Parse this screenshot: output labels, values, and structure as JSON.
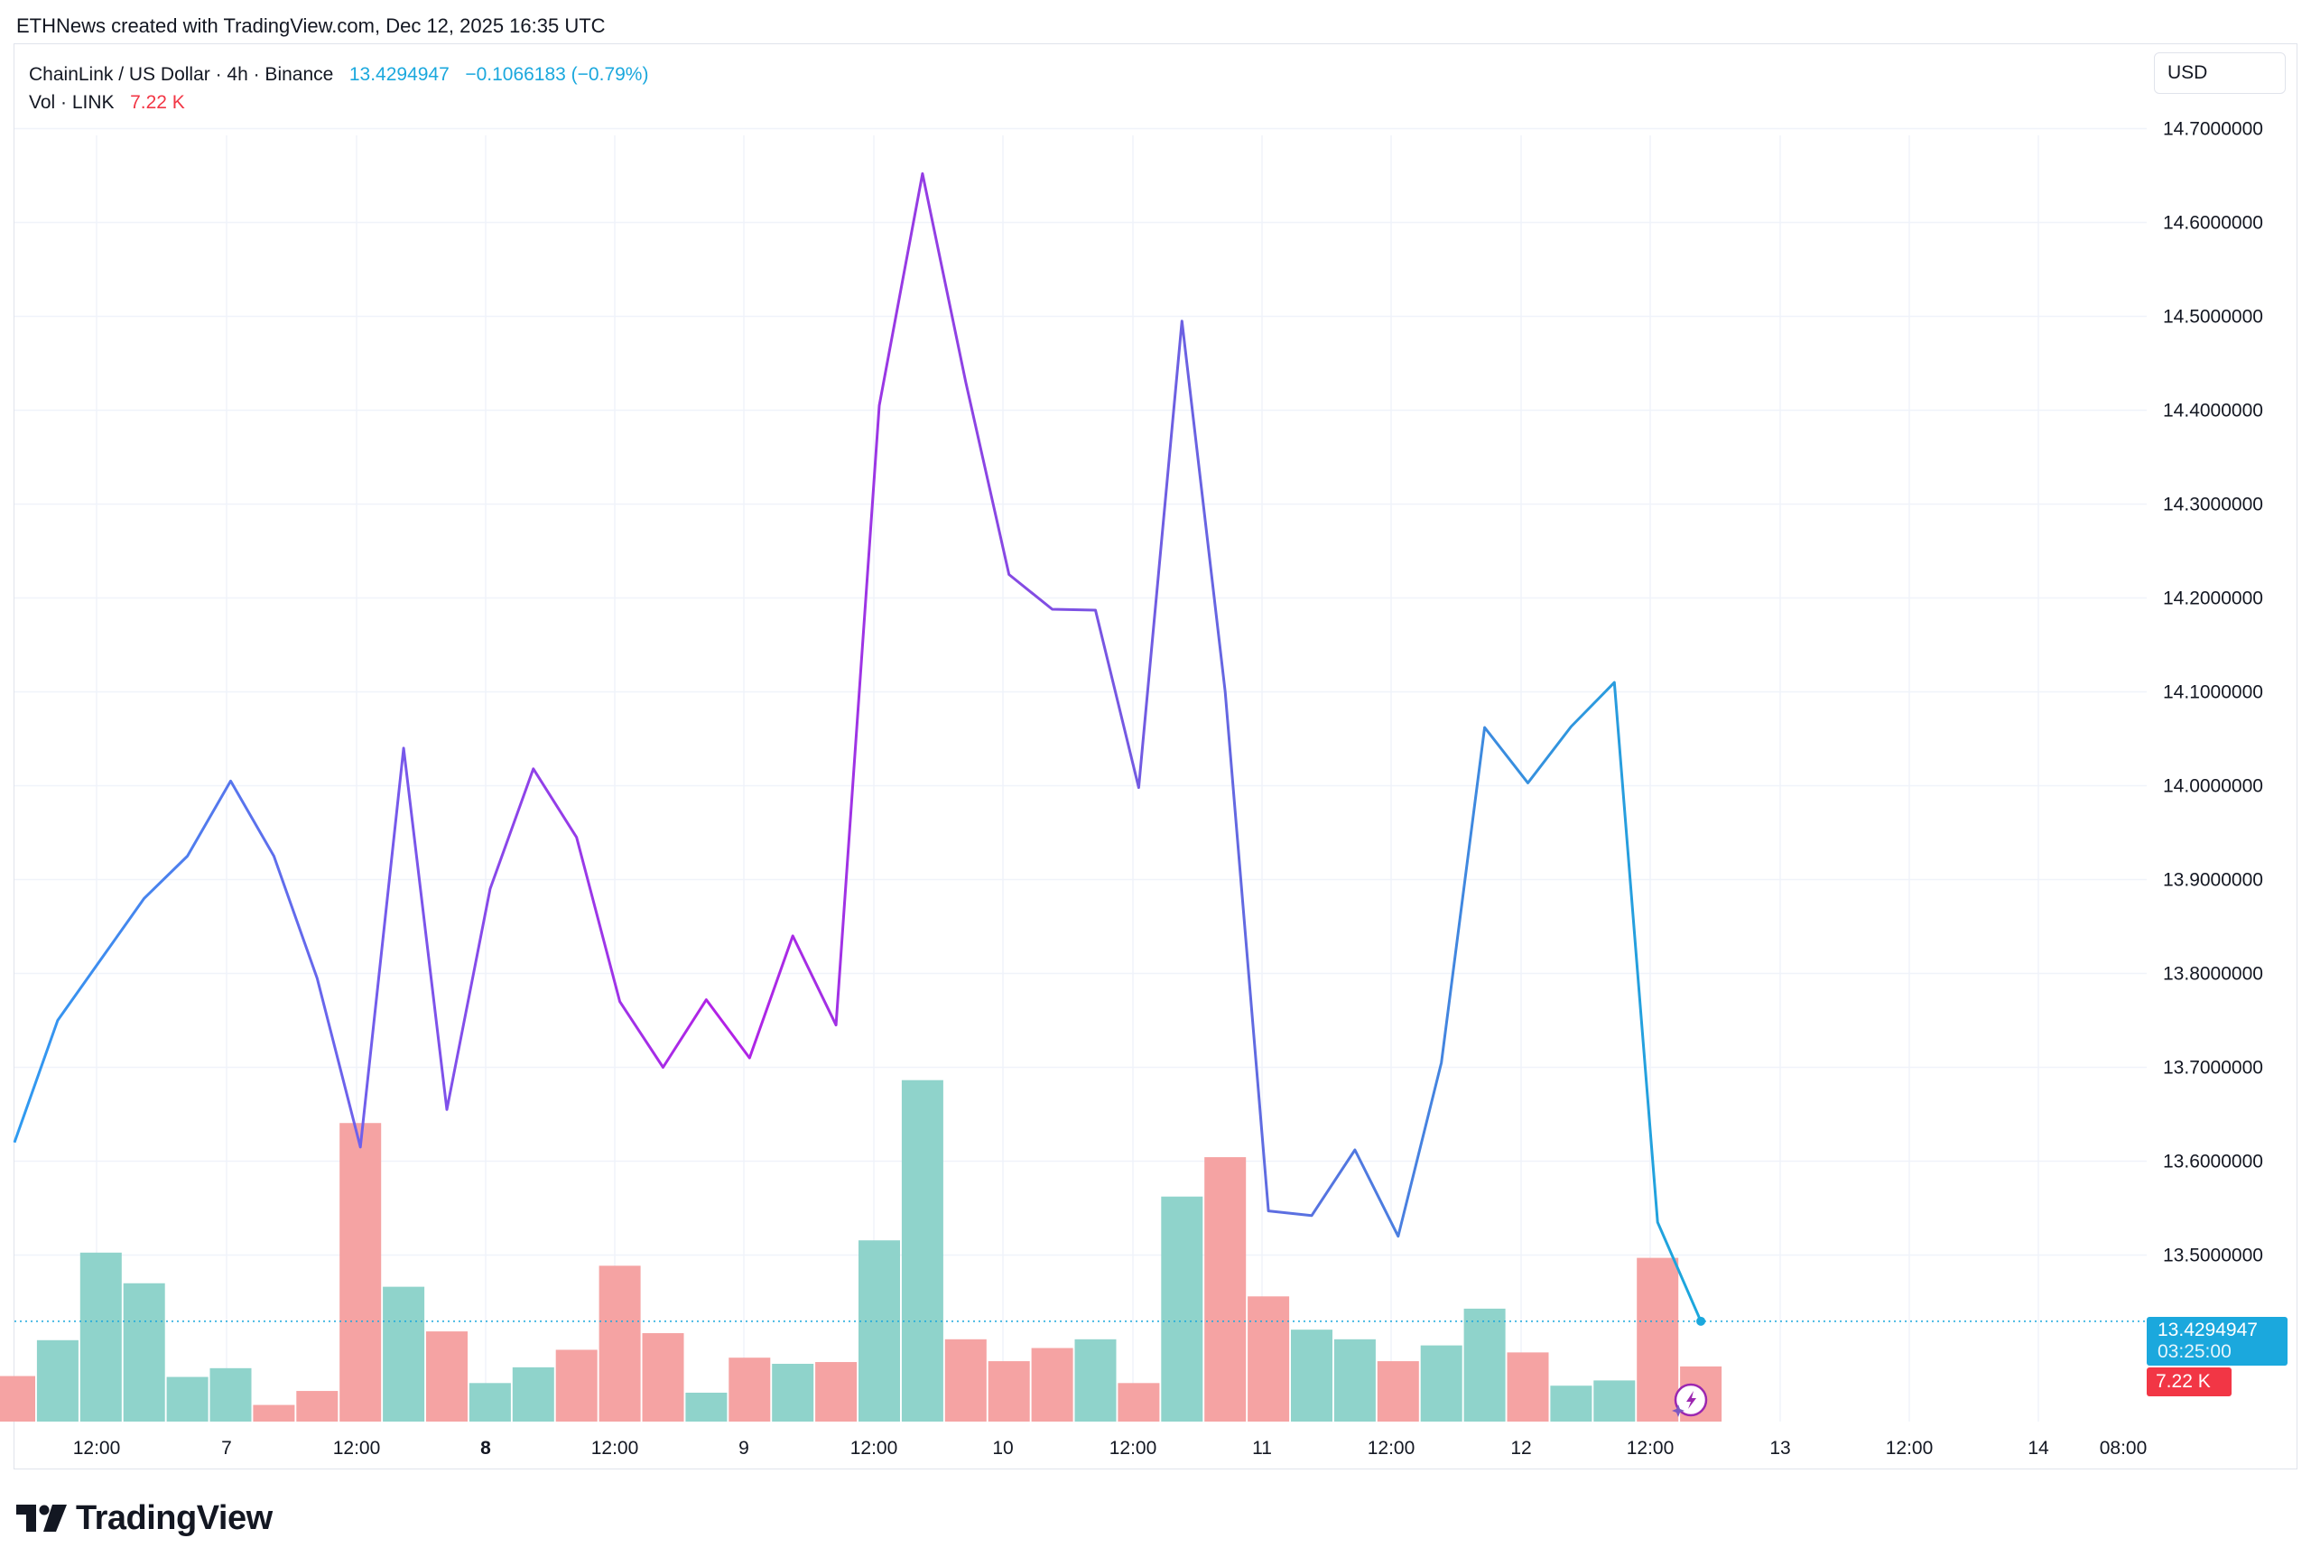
{
  "header": {
    "caption": "ETHNews created with TradingView.com, Dec 12, 2025 16:35 UTC"
  },
  "legend": {
    "symbol": "ChainLink / US Dollar · 4h · Binance",
    "last_price": "13.4294947",
    "change": "−0.1066183 (−0.79%)",
    "vol_label": "Vol · LINK",
    "vol_value": "7.22 K"
  },
  "currency_button": {
    "label": "USD"
  },
  "price_tag": {
    "price": "13.4294947",
    "countdown": "03:25:00"
  },
  "vol_tag": {
    "value": "7.22 K"
  },
  "footer": {
    "brand": "TradingView"
  },
  "colors": {
    "line_start": "#2e9bf0",
    "line_mid": "#b321e6",
    "line_end": "#1ba8dd",
    "vol_up": "#8fd3cb",
    "vol_down": "#f5a3a3",
    "grid": "#f0f3fa",
    "price_dotted": "#1ba8dd"
  },
  "chart_data": [
    {
      "type": "line",
      "title": "",
      "xlabel": "",
      "ylabel": "",
      "ylim": [
        13.3,
        14.74
      ],
      "grid": true,
      "x_tick_labels": [
        "12:00",
        "7",
        "12:00",
        "8",
        "12:00",
        "9",
        "12:00",
        "10",
        "12:00",
        "11",
        "12:00",
        "12",
        "12:00",
        "13",
        "12:00",
        "14",
        "08:00"
      ],
      "y_tick_labels": [
        "14.7000000",
        "14.6000000",
        "14.5000000",
        "14.4000000",
        "14.3000000",
        "14.2000000",
        "14.1000000",
        "14.0000000",
        "13.9000000",
        "13.8000000",
        "13.7000000",
        "13.6000000",
        "13.5000000",
        "13.4294947"
      ],
      "y_ticks": [
        14.7,
        14.6,
        14.5,
        14.4,
        14.3,
        14.2,
        14.1,
        14.0,
        13.9,
        13.8,
        13.7,
        13.6,
        13.5
      ],
      "series": [
        {
          "values": [
            13.62,
            13.75,
            13.815,
            13.88,
            13.925,
            14.005,
            13.925,
            13.795,
            13.615,
            14.04,
            13.655,
            13.89,
            14.018,
            13.945,
            13.77,
            13.7,
            13.772,
            13.71,
            13.84,
            13.745,
            14.405,
            14.652,
            14.43,
            14.225,
            14.188,
            14.187,
            13.998,
            14.495,
            14.1,
            13.547,
            13.542,
            13.612,
            13.52,
            13.705,
            14.062,
            14.003,
            14.063,
            14.11,
            13.535,
            13.4294947
          ]
        }
      ],
      "last_value": 13.4294947
    },
    {
      "type": "bar",
      "name": "Vol · LINK",
      "last_value": "7.22 K",
      "values": [
        0.52,
        0.93,
        1.93,
        1.58,
        0.51,
        0.61,
        0.19,
        0.35,
        3.41,
        1.54,
        1.03,
        0.44,
        0.62,
        0.82,
        1.78,
        1.01,
        0.33,
        0.73,
        0.66,
        0.68,
        2.07,
        3.9,
        0.94,
        0.69,
        0.84,
        0.94,
        0.44,
        2.57,
        3.02,
        1.43,
        1.05,
        0.94,
        0.69,
        0.87,
        1.29,
        0.79,
        0.41,
        0.47,
        1.87,
        0.63
      ],
      "direction": [
        "down",
        "up",
        "up",
        "up",
        "up",
        "up",
        "down",
        "down",
        "down",
        "up",
        "down",
        "up",
        "up",
        "down",
        "down",
        "down",
        "up",
        "down",
        "up",
        "down",
        "up",
        "up",
        "down",
        "down",
        "down",
        "up",
        "down",
        "up",
        "down",
        "down",
        "up",
        "up",
        "down",
        "up",
        "up",
        "down",
        "up",
        "up",
        "down",
        "down"
      ]
    }
  ]
}
